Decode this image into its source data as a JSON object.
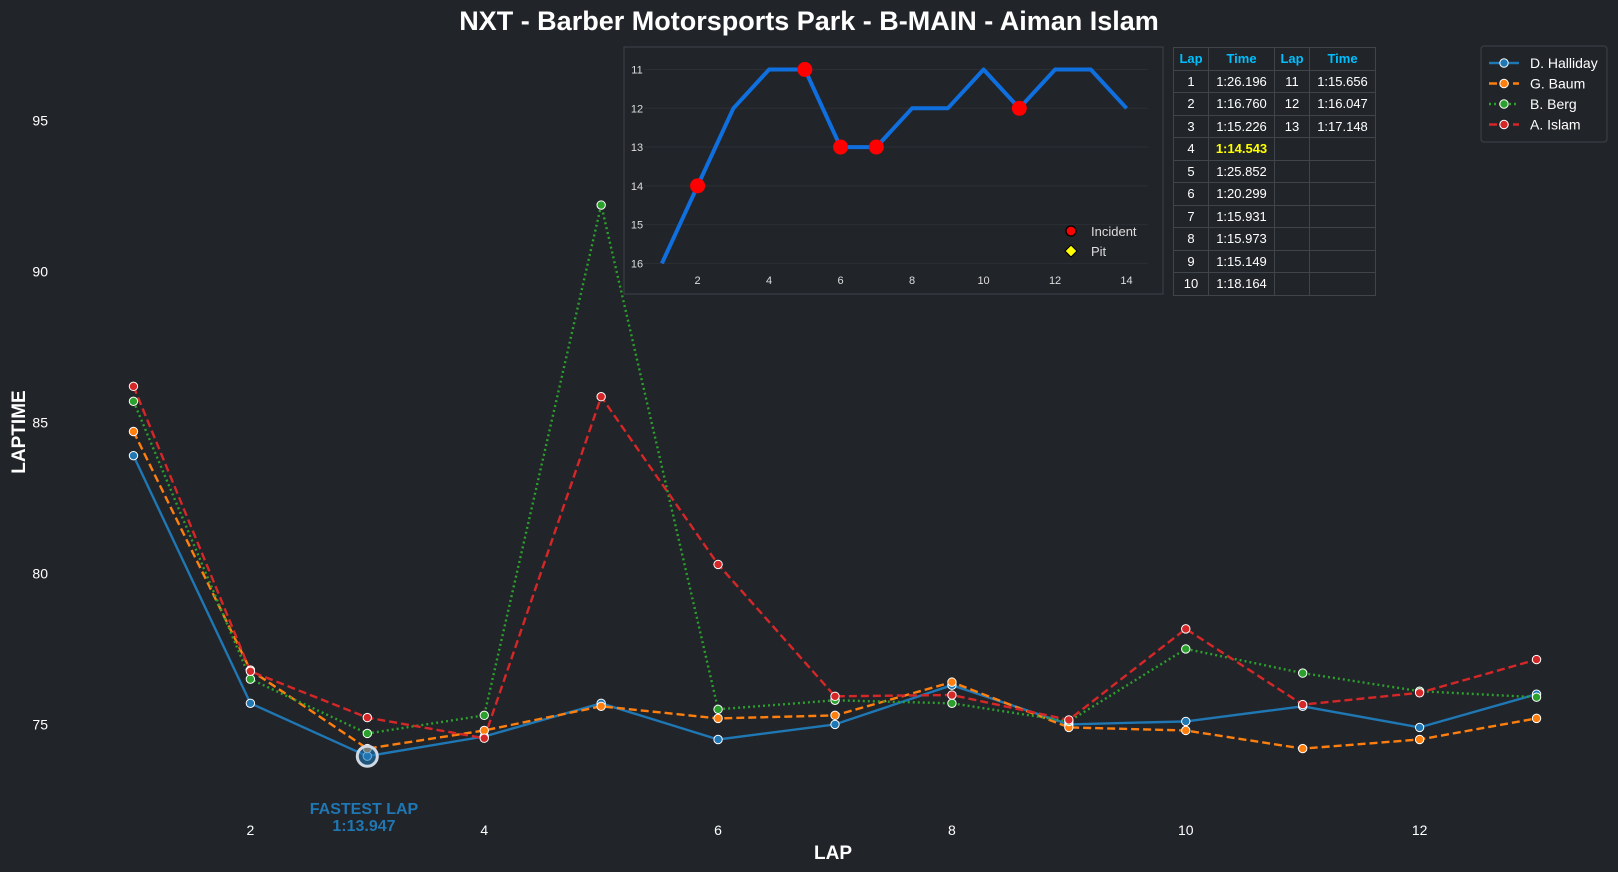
{
  "chart_data": [
    {
      "type": "line",
      "title": "NXT - Barber Motorsports Park - B-MAIN - Aiman Islam",
      "xlabel": "LAP",
      "ylabel": "LAPTIME",
      "xlim": [
        0.5,
        13.5
      ],
      "ylim": [
        72.0,
        97.5
      ],
      "xticks": [
        2,
        4,
        6,
        8,
        10,
        12
      ],
      "yticks": [
        75,
        80,
        85,
        90,
        95
      ],
      "grid": false,
      "legend_position": "top-right",
      "x": [
        1,
        2,
        3,
        4,
        5,
        6,
        7,
        8,
        9,
        10,
        11,
        12,
        13
      ],
      "series": [
        {
          "name": "D. Halliday",
          "color": "#1f77b4",
          "dash": "solid",
          "values": [
            83.9,
            75.7,
            73.947,
            74.6,
            75.7,
            74.5,
            75.0,
            76.3,
            75.0,
            75.1,
            75.6,
            74.9,
            76.0
          ]
        },
        {
          "name": "G. Baum",
          "color": "#ff7f0e",
          "dash": "dashed",
          "values": [
            84.7,
            76.8,
            74.2,
            74.8,
            75.6,
            75.2,
            75.3,
            76.4,
            74.9,
            74.8,
            74.2,
            74.5,
            75.2
          ]
        },
        {
          "name": "B. Berg",
          "color": "#2ca02c",
          "dash": "dotted",
          "values": [
            85.7,
            76.5,
            74.7,
            75.3,
            92.2,
            75.5,
            75.8,
            75.7,
            75.1,
            77.5,
            76.7,
            76.1,
            75.9
          ]
        },
        {
          "name": "A. Islam",
          "color": "#d62728",
          "dash": "dashed",
          "values": [
            86.196,
            76.76,
            75.226,
            74.543,
            85.852,
            80.299,
            75.931,
            75.973,
            75.149,
            78.164,
            75.656,
            76.047,
            77.148
          ]
        }
      ],
      "annotation": {
        "label": "FASTEST LAP",
        "value": "1:13.947",
        "x": 3,
        "y": 73.947,
        "color": "#1f77b4"
      }
    },
    {
      "type": "line",
      "title": "",
      "xlim": [
        0.5,
        14.6
      ],
      "ylim": [
        16.3,
        10.6
      ],
      "xticks": [
        2,
        4,
        6,
        8,
        10,
        12,
        14
      ],
      "yticks": [
        11,
        12,
        13,
        14,
        15,
        16
      ],
      "grid": true,
      "legend_position": "bottom-right",
      "x": [
        1,
        2,
        3,
        4,
        5,
        6,
        7,
        8,
        9,
        10,
        11,
        12,
        13,
        14
      ],
      "positions": [
        16,
        14,
        12,
        11,
        11,
        13,
        13,
        12,
        12,
        11,
        12,
        11,
        11,
        12
      ],
      "line_color": "#0f6fdf",
      "incident_laps": [
        2,
        5,
        6,
        7,
        11
      ],
      "pit_laps": [],
      "legend": [
        {
          "label": "Incident",
          "marker": "circle",
          "color": "#ff0000"
        },
        {
          "label": "Pit",
          "marker": "diamond",
          "color": "#ffff00"
        }
      ]
    }
  ],
  "table": {
    "headers": [
      "Lap",
      "Time",
      "Lap",
      "Time"
    ],
    "best_row": 3,
    "rows": [
      [
        "1",
        "1:26.196",
        "11",
        "1:15.656"
      ],
      [
        "2",
        "1:16.760",
        "12",
        "1:16.047"
      ],
      [
        "3",
        "1:15.226",
        "13",
        "1:17.148"
      ],
      [
        "4",
        "1:14.543",
        "",
        ""
      ],
      [
        "5",
        "1:25.852",
        "",
        ""
      ],
      [
        "6",
        "1:20.299",
        "",
        ""
      ],
      [
        "7",
        "1:15.931",
        "",
        ""
      ],
      [
        "8",
        "1:15.973",
        "",
        ""
      ],
      [
        "9",
        "1:15.149",
        "",
        ""
      ],
      [
        "10",
        "1:18.164",
        "",
        ""
      ]
    ]
  }
}
